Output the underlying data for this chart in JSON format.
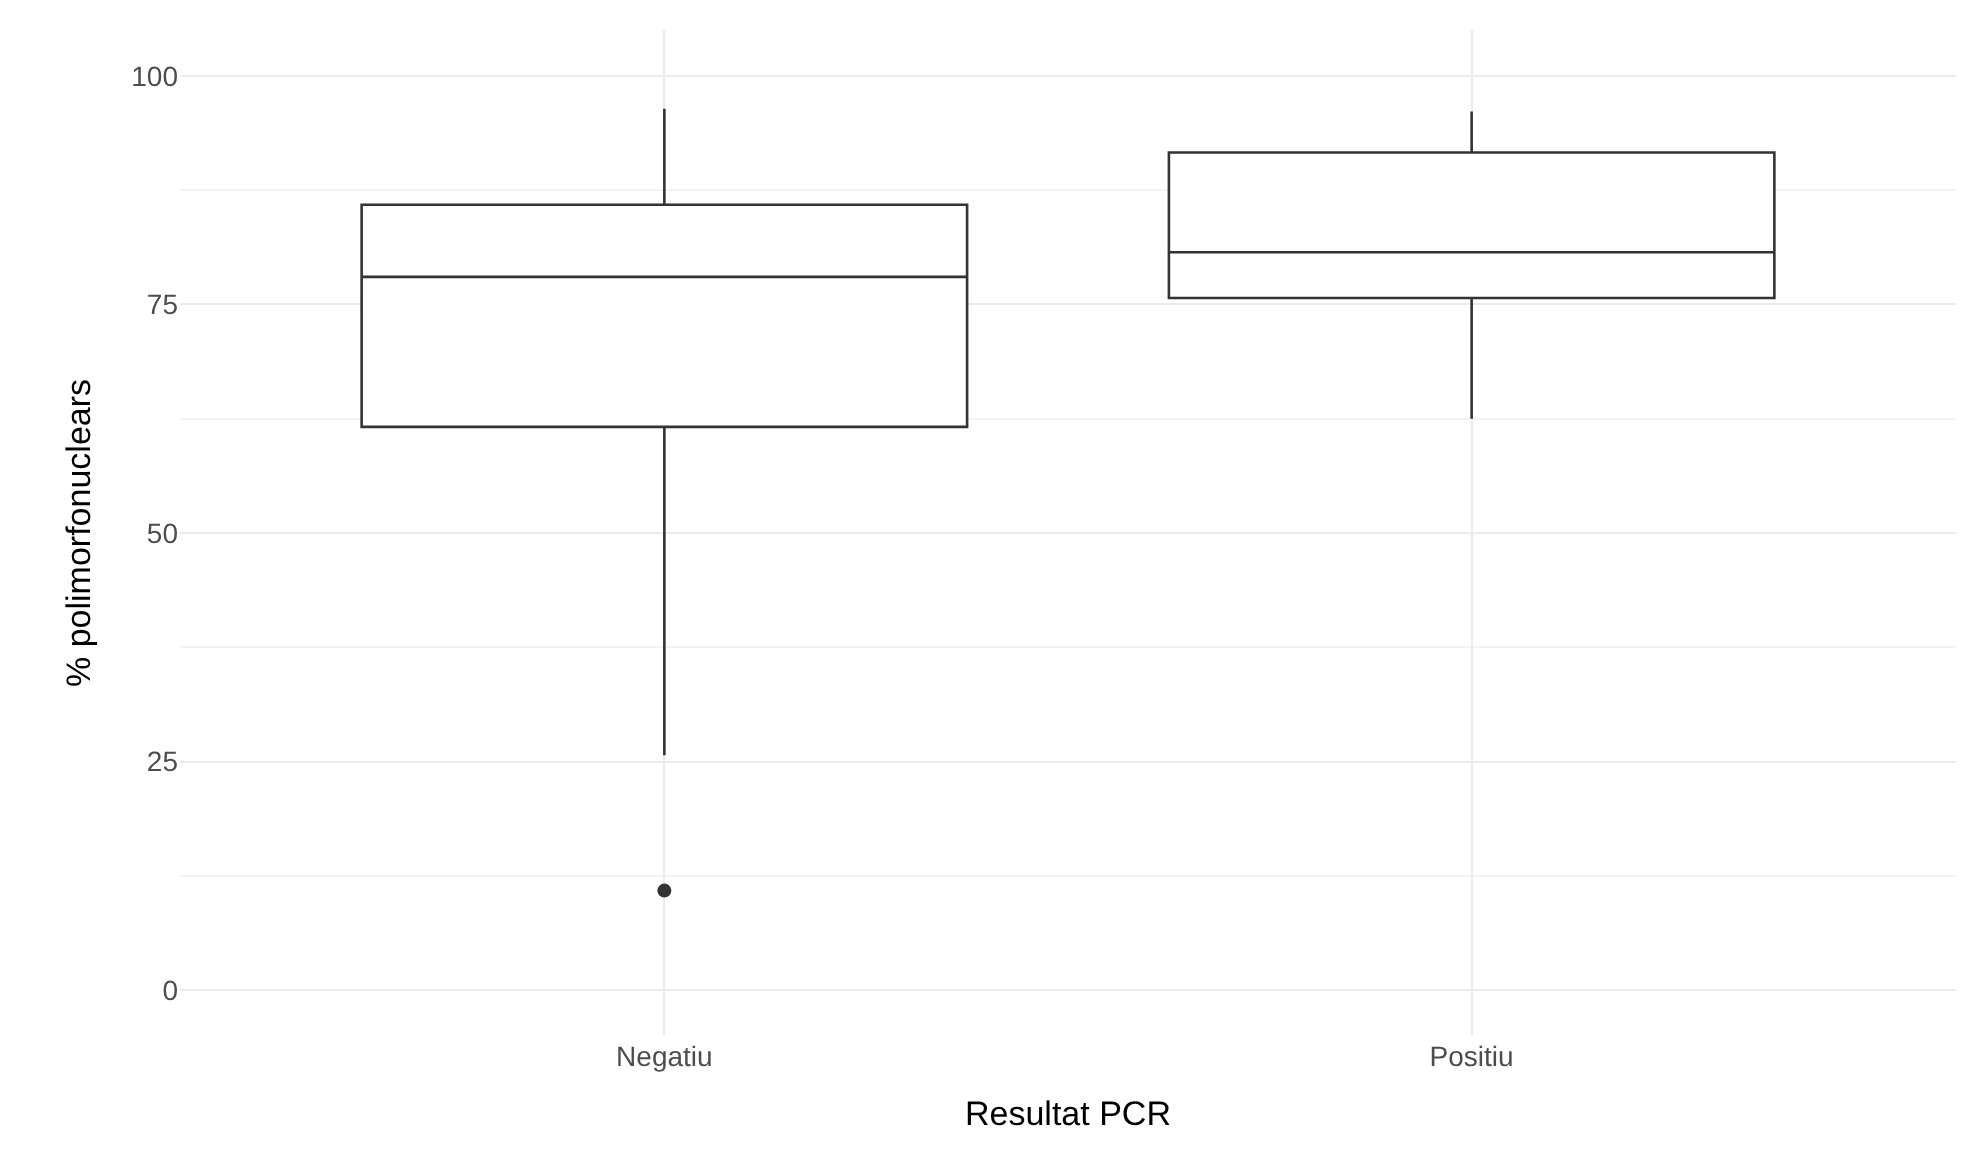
{
  "chart_data": {
    "type": "box",
    "xlabel": "Resultat PCR",
    "ylabel": "% polimorfonuclears",
    "categories": [
      "Negatiu",
      "Positiu"
    ],
    "boxes": [
      {
        "low": 25.7,
        "q1": 61.6,
        "median": 78.0,
        "q3": 85.9,
        "high": 96.4,
        "outliers": [
          10.9
        ]
      },
      {
        "low": 62.5,
        "q1": 75.7,
        "median": 80.7,
        "q3": 91.6,
        "high": 96.1
      }
    ],
    "color": "#333333",
    "ylim": [
      -5,
      105
    ],
    "yticks": [
      0,
      25,
      50,
      75,
      100
    ],
    "grid": true
  }
}
